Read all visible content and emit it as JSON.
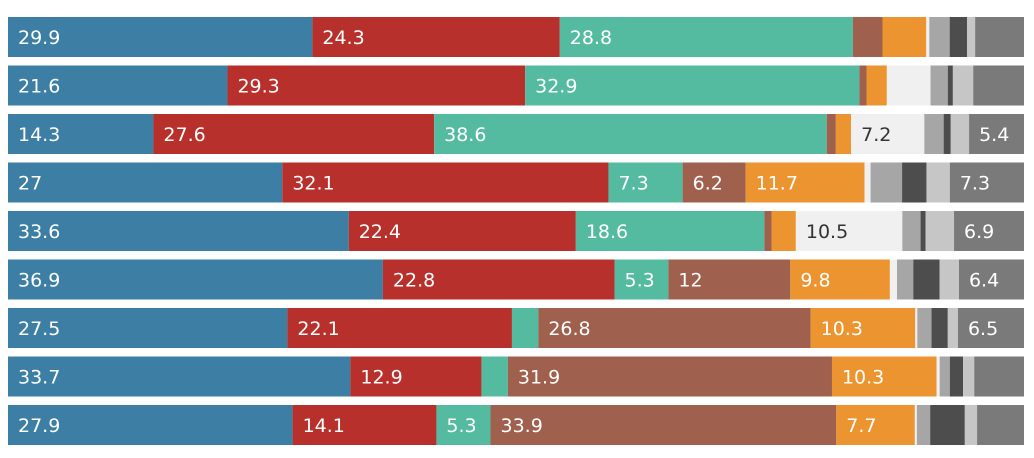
{
  "chart_data": {
    "type": "bar",
    "orientation": "horizontal",
    "stacked": true,
    "normalized": true,
    "legend": "none",
    "grid": false,
    "xlim": [
      0,
      100
    ],
    "rows": [
      {
        "segments": [
          29.9,
          24.3,
          28.8,
          2.9,
          4.3,
          0.3,
          2.0,
          1.7,
          0.8,
          4.8
        ],
        "labels": [
          "29.9",
          "24.3",
          "28.8",
          "",
          "",
          "",
          "",
          "",
          "",
          ""
        ]
      },
      {
        "segments": [
          21.6,
          29.3,
          32.9,
          0.7,
          2.0,
          4.3,
          1.7,
          0.5,
          2.0,
          5.0
        ],
        "labels": [
          "21.6",
          "29.3",
          "32.9",
          "",
          "",
          "",
          "",
          "",
          "",
          ""
        ]
      },
      {
        "segments": [
          14.3,
          27.6,
          38.6,
          0.9,
          1.5,
          7.2,
          1.9,
          0.7,
          1.8,
          5.4
        ],
        "labels": [
          "14.3",
          "27.6",
          "38.6",
          "",
          "",
          "7.2",
          "",
          "",
          "",
          "5.4"
        ]
      },
      {
        "segments": [
          27.0,
          32.1,
          7.3,
          6.2,
          11.7,
          0.6,
          3.1,
          2.4,
          2.3,
          7.3
        ],
        "labels": [
          "27",
          "32.1",
          "7.3",
          "6.2",
          "11.7",
          "",
          "",
          "",
          "",
          "7.3"
        ]
      },
      {
        "segments": [
          33.6,
          22.4,
          18.6,
          0.7,
          2.4,
          10.5,
          1.8,
          0.5,
          2.8,
          6.9
        ],
        "labels": [
          "33.6",
          "22.4",
          "18.6",
          "",
          "",
          "10.5",
          "",
          "",
          "",
          "6.9"
        ]
      },
      {
        "segments": [
          36.9,
          22.8,
          5.3,
          12.0,
          9.8,
          0.7,
          1.6,
          2.6,
          1.9,
          6.4
        ],
        "labels": [
          "36.9",
          "22.8",
          "5.3",
          "12",
          "9.8",
          "",
          "",
          "",
          "",
          "6.4"
        ]
      },
      {
        "segments": [
          27.5,
          22.1,
          2.6,
          26.8,
          10.3,
          0.2,
          1.4,
          1.6,
          1.0,
          6.5
        ],
        "labels": [
          "27.5",
          "22.1",
          "",
          "26.8",
          "10.3",
          "",
          "",
          "",
          "",
          "6.5"
        ]
      },
      {
        "segments": [
          33.7,
          12.9,
          2.6,
          31.9,
          10.3,
          0.3,
          1.0,
          1.3,
          1.1,
          4.9
        ],
        "labels": [
          "33.7",
          "12.9",
          "",
          "31.9",
          "10.3",
          "",
          "",
          "",
          "",
          ""
        ]
      },
      {
        "segments": [
          27.9,
          14.1,
          5.3,
          33.9,
          7.7,
          0.2,
          1.3,
          3.4,
          1.2,
          4.6
        ],
        "labels": [
          "27.9",
          "14.1",
          "5.3",
          "33.9",
          "7.7",
          "",
          "",
          "",
          "",
          ""
        ]
      }
    ],
    "colors": [
      "#3d7fa4",
      "#b8302b",
      "#55bba0",
      "#a0604e",
      "#ec9430",
      "#f0f0f0",
      "#a6a6a6",
      "#4d4d4d",
      "#c6c6c6",
      "#7a7a7a"
    ],
    "label_colors": [
      "#ffffff",
      "#ffffff",
      "#ffffff",
      "#ffffff",
      "#ffffff",
      "#333333",
      "#333333",
      "#ffffff",
      "#333333",
      "#ffffff"
    ]
  }
}
